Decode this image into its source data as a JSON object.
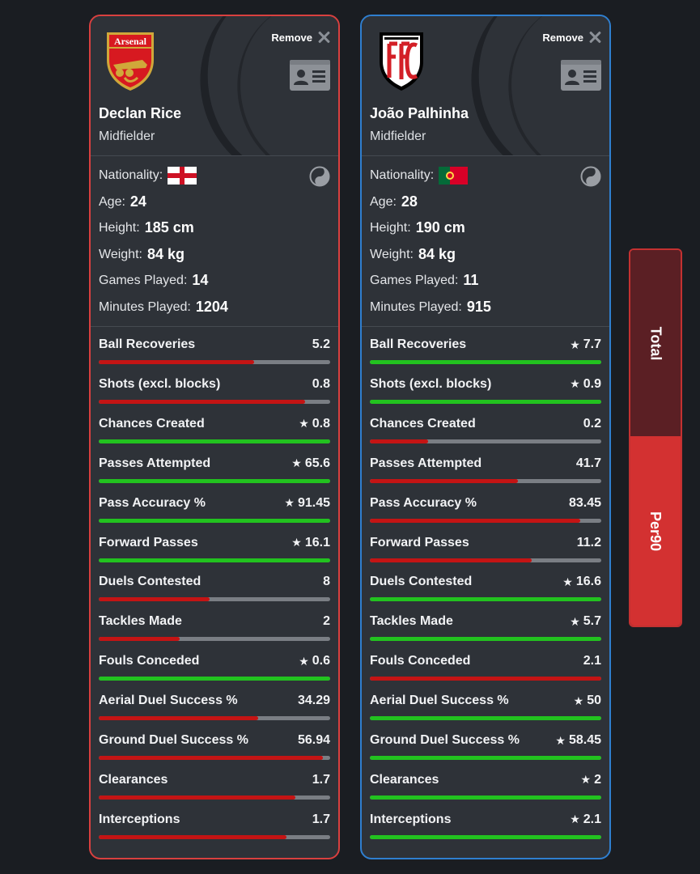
{
  "players": [
    {
      "remove_label": "Remove",
      "name": "Declan Rice",
      "position": "Midfielder",
      "club_badge_text": "Arsenal",
      "nationality_label": "Nationality:",
      "nationality_flag": "england-flag",
      "age_label": "Age:",
      "age": "24",
      "height_label": "Height:",
      "height": "185 cm",
      "weight_label": "Weight:",
      "weight": "84 kg",
      "games_label": "Games Played:",
      "games": "14",
      "minutes_label": "Minutes Played:",
      "minutes": "1204",
      "accent_color": "#d9403f",
      "stats": [
        {
          "label": "Ball Recoveries",
          "value": "5.2",
          "star": false,
          "level": 0.67,
          "color": "red"
        },
        {
          "label": "Shots (excl. blocks)",
          "value": "0.8",
          "star": false,
          "level": 0.89,
          "color": "red"
        },
        {
          "label": "Chances Created",
          "value": "0.8",
          "star": true,
          "level": 1.0,
          "color": "green"
        },
        {
          "label": "Passes Attempted",
          "value": "65.6",
          "star": true,
          "level": 1.0,
          "color": "green"
        },
        {
          "label": "Pass Accuracy %",
          "value": "91.45",
          "star": true,
          "level": 1.0,
          "color": "green"
        },
        {
          "label": "Forward Passes",
          "value": "16.1",
          "star": true,
          "level": 1.0,
          "color": "green"
        },
        {
          "label": "Duels Contested",
          "value": "8",
          "star": false,
          "level": 0.48,
          "color": "red"
        },
        {
          "label": "Tackles Made",
          "value": "2",
          "star": false,
          "level": 0.35,
          "color": "red"
        },
        {
          "label": "Fouls Conceded",
          "value": "0.6",
          "star": true,
          "level": 1.0,
          "color": "green"
        },
        {
          "label": "Aerial Duel Success %",
          "value": "34.29",
          "star": false,
          "level": 0.69,
          "color": "red"
        },
        {
          "label": "Ground Duel Success %",
          "value": "56.94",
          "star": false,
          "level": 0.97,
          "color": "red"
        },
        {
          "label": "Clearances",
          "value": "1.7",
          "star": false,
          "level": 0.85,
          "color": "red"
        },
        {
          "label": "Interceptions",
          "value": "1.7",
          "star": false,
          "level": 0.81,
          "color": "red"
        }
      ]
    },
    {
      "remove_label": "Remove",
      "name": "João Palhinha",
      "position": "Midfielder",
      "club_badge_text": "",
      "nationality_label": "Nationality:",
      "nationality_flag": "portugal-flag",
      "age_label": "Age:",
      "age": "28",
      "height_label": "Height:",
      "height": "190 cm",
      "weight_label": "Weight:",
      "weight": "84 kg",
      "games_label": "Games Played:",
      "games": "11",
      "minutes_label": "Minutes Played:",
      "minutes": "915",
      "accent_color": "#2f7fd0",
      "stats": [
        {
          "label": "Ball Recoveries",
          "value": "7.7",
          "star": true,
          "level": 1.0,
          "color": "green"
        },
        {
          "label": "Shots (excl. blocks)",
          "value": "0.9",
          "star": true,
          "level": 1.0,
          "color": "green"
        },
        {
          "label": "Chances Created",
          "value": "0.2",
          "star": false,
          "level": 0.25,
          "color": "red"
        },
        {
          "label": "Passes Attempted",
          "value": "41.7",
          "star": false,
          "level": 0.64,
          "color": "red"
        },
        {
          "label": "Pass Accuracy %",
          "value": "83.45",
          "star": false,
          "level": 0.91,
          "color": "red"
        },
        {
          "label": "Forward Passes",
          "value": "11.2",
          "star": false,
          "level": 0.7,
          "color": "red"
        },
        {
          "label": "Duels Contested",
          "value": "16.6",
          "star": true,
          "level": 1.0,
          "color": "green"
        },
        {
          "label": "Tackles Made",
          "value": "5.7",
          "star": true,
          "level": 1.0,
          "color": "green"
        },
        {
          "label": "Fouls Conceded",
          "value": "2.1",
          "star": false,
          "level": 1.0,
          "color": "red"
        },
        {
          "label": "Aerial Duel Success %",
          "value": "50",
          "star": true,
          "level": 1.0,
          "color": "green"
        },
        {
          "label": "Ground Duel Success %",
          "value": "58.45",
          "star": true,
          "level": 1.0,
          "color": "green"
        },
        {
          "label": "Clearances",
          "value": "2",
          "star": true,
          "level": 1.0,
          "color": "green"
        },
        {
          "label": "Interceptions",
          "value": "2.1",
          "star": true,
          "level": 1.0,
          "color": "green"
        }
      ]
    }
  ],
  "toggle": {
    "total_label": "Total",
    "per90_label": "Per90",
    "active": "Per90"
  },
  "icons": {
    "remove": "close-icon",
    "profile": "id-card-icon",
    "compare": "yin-yang-icon",
    "star": "star-icon"
  }
}
